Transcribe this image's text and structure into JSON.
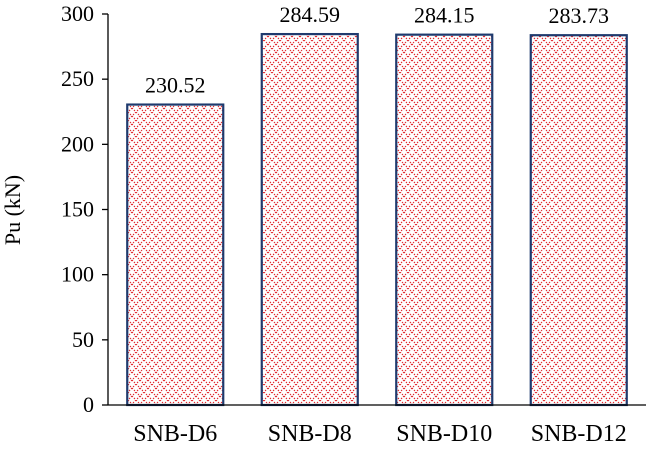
{
  "chart_data": {
    "type": "bar",
    "title": "",
    "xlabel": "",
    "ylabel": "Pu (kN)",
    "categories": [
      "SNB-D6",
      "SNB-D8",
      "SNB-D10",
      "SNB-D12"
    ],
    "values": [
      230.52,
      284.59,
      284.15,
      283.73
    ],
    "value_labels": [
      "230.52",
      "284.59",
      "284.15",
      "283.73"
    ],
    "ylim": [
      0,
      300
    ],
    "y_ticks": [
      0,
      50,
      100,
      150,
      200,
      250,
      300
    ],
    "grid": false,
    "legend": "none",
    "bar_fill": "red-dotted-crosshatch",
    "bar_outline_color": "#1f3a6e",
    "pattern_color": "#e0242a",
    "axis_color": "#000000"
  }
}
